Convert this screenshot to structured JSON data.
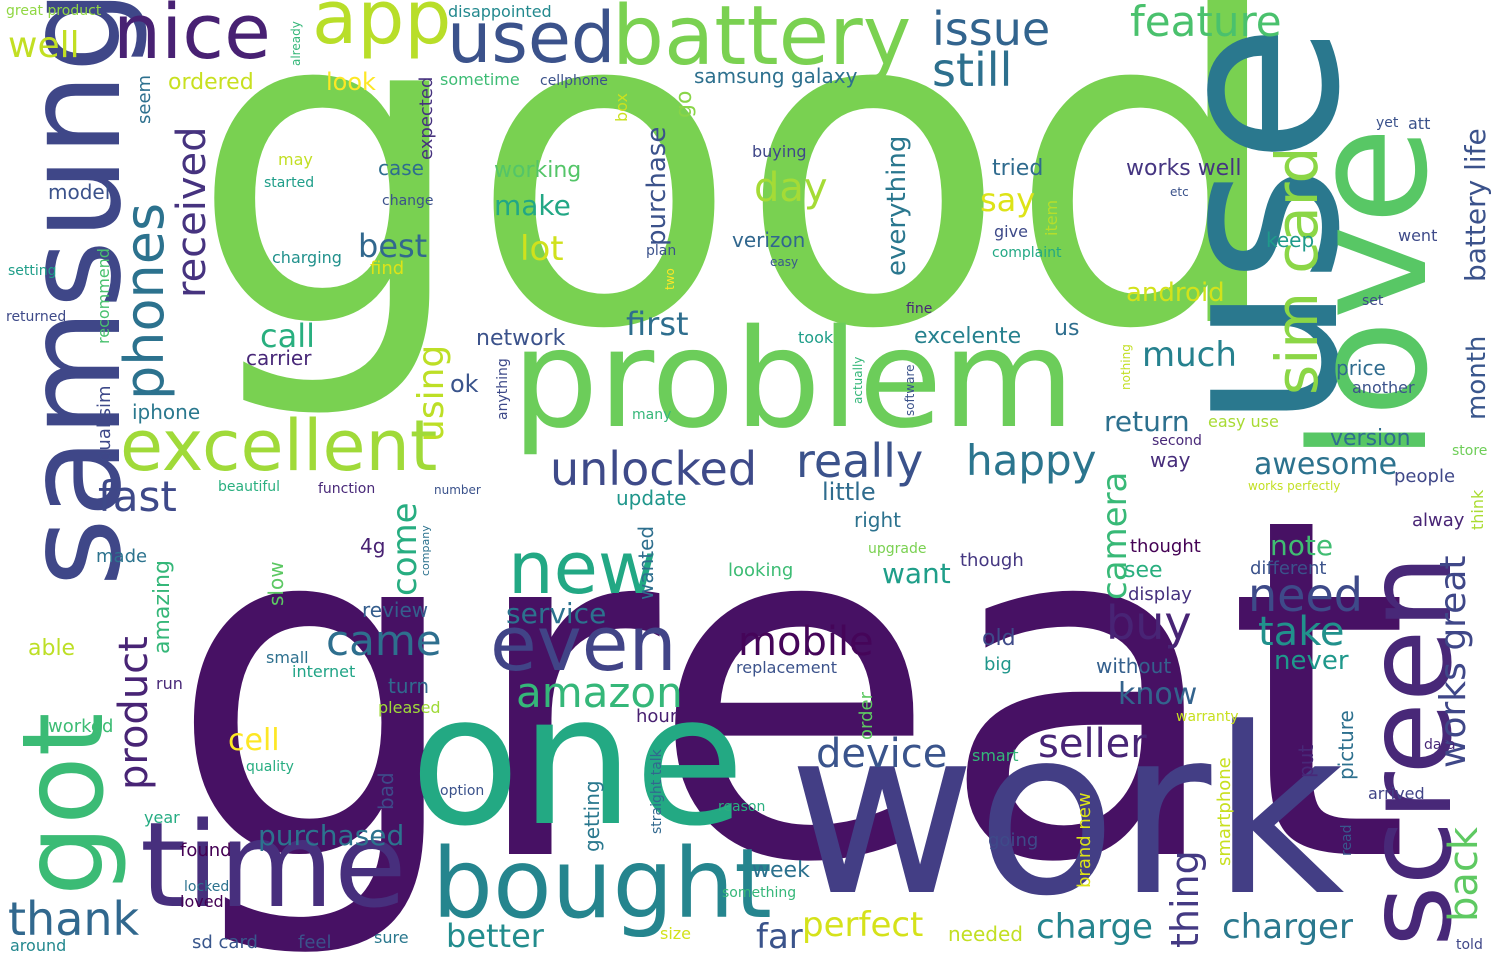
{
  "words": [
    {
      "text": "great",
      "color": "#471164"
    },
    {
      "text": "good",
      "color": "#79d151"
    },
    {
      "text": "work",
      "color": "#433e85"
    },
    {
      "text": "use",
      "color": "#2a788e"
    },
    {
      "text": "one",
      "color": "#23a983"
    },
    {
      "text": "samsung",
      "color": "#3f4788"
    },
    {
      "text": "love",
      "color": "#58c765"
    },
    {
      "text": "problem",
      "color": "#6ccd5a"
    },
    {
      "text": "screen",
      "color": "#482878"
    },
    {
      "text": "time",
      "color": "#472f7d"
    },
    {
      "text": "got",
      "color": "#3bbb75"
    },
    {
      "text": "bought",
      "color": "#25858e"
    },
    {
      "text": "battery",
      "color": "#7ad151"
    },
    {
      "text": "used",
      "color": "#3b528b"
    },
    {
      "text": "nice",
      "color": "#482173"
    },
    {
      "text": "app",
      "color": "#b8de29"
    },
    {
      "text": "excellent",
      "color": "#a0da39"
    },
    {
      "text": "even",
      "color": "#414487"
    },
    {
      "text": "new",
      "color": "#22a884"
    },
    {
      "text": "sim card",
      "color": "#8bd646"
    },
    {
      "text": "phones",
      "color": "#2c728e"
    },
    {
      "text": "issue",
      "color": "#32648e"
    },
    {
      "text": "still",
      "color": "#2d708e"
    },
    {
      "text": "feature",
      "color": "#4ac16d"
    },
    {
      "text": "well",
      "color": "#c2df23"
    },
    {
      "text": "unlocked",
      "color": "#3e4a89"
    },
    {
      "text": "really",
      "color": "#3b528b"
    },
    {
      "text": "happy",
      "color": "#2b758e"
    },
    {
      "text": "amazon",
      "color": "#35b779"
    },
    {
      "text": "thank",
      "color": "#31688e"
    },
    {
      "text": "received",
      "color": "#46337f"
    },
    {
      "text": "product",
      "color": "#482475"
    },
    {
      "text": "fast",
      "color": "#3e4989"
    },
    {
      "text": "came",
      "color": "#2e6f8e"
    },
    {
      "text": "mobile",
      "color": "#450559"
    },
    {
      "text": "seller",
      "color": "#482576"
    },
    {
      "text": "device",
      "color": "#3a548c"
    },
    {
      "text": "need",
      "color": "#3e4a89"
    },
    {
      "text": "buy",
      "color": "#482475"
    },
    {
      "text": "take",
      "color": "#21918c"
    },
    {
      "text": "day",
      "color": "#a5db36"
    },
    {
      "text": "say",
      "color": "#dde318"
    },
    {
      "text": "much",
      "color": "#26818e"
    },
    {
      "text": "camera",
      "color": "#38b977"
    },
    {
      "text": "using",
      "color": "#bddf26"
    },
    {
      "text": "call",
      "color": "#29af7f"
    },
    {
      "text": "come",
      "color": "#27ad81"
    },
    {
      "text": "purchased",
      "color": "#2c738e"
    },
    {
      "text": "perfect",
      "color": "#d5e21a"
    },
    {
      "text": "better",
      "color": "#228c8d"
    },
    {
      "text": "charge",
      "color": "#25848e"
    },
    {
      "text": "charger",
      "color": "#2a788e"
    },
    {
      "text": "thing",
      "color": "#443a83"
    },
    {
      "text": "back",
      "color": "#5ec962"
    },
    {
      "text": "works great",
      "color": "#3f4788"
    },
    {
      "text": "battery life",
      "color": "#3b528b"
    },
    {
      "text": "first",
      "color": "#2e6e8e"
    },
    {
      "text": "return",
      "color": "#2d708e"
    },
    {
      "text": "awesome",
      "color": "#2c728e"
    },
    {
      "text": "note",
      "color": "#40bd72"
    },
    {
      "text": "never",
      "color": "#1f988b"
    },
    {
      "text": "know",
      "color": "#33638d"
    },
    {
      "text": "lot",
      "color": "#d0e11c"
    },
    {
      "text": "make",
      "color": "#22a785"
    },
    {
      "text": "best",
      "color": "#31688e"
    },
    {
      "text": "service",
      "color": "#2c728e"
    },
    {
      "text": "far",
      "color": "#3a538b"
    },
    {
      "text": "week",
      "color": "#2c718e"
    },
    {
      "text": "want",
      "color": "#1f9e89"
    },
    {
      "text": "cell",
      "color": "#fde725"
    },
    {
      "text": "android",
      "color": "#d2e21b"
    },
    {
      "text": "month",
      "color": "#39568c"
    },
    {
      "text": "everything",
      "color": "#2a778e"
    },
    {
      "text": "purchase",
      "color": "#3b528b"
    },
    {
      "text": "working",
      "color": "#54c568"
    },
    {
      "text": "little",
      "color": "#2f6c8e"
    },
    {
      "text": "look",
      "color": "#fde725"
    },
    {
      "text": "ordered",
      "color": "#c8e020"
    },
    {
      "text": "samsung galaxy",
      "color": "#2d708e"
    },
    {
      "text": "verizon",
      "color": "#31678e"
    },
    {
      "text": "go",
      "color": "#89d548"
    },
    {
      "text": "case",
      "color": "#2e6e8e"
    },
    {
      "text": "model",
      "color": "#3b528b"
    },
    {
      "text": "tried",
      "color": "#2f6b8e"
    },
    {
      "text": "works well",
      "color": "#453581"
    },
    {
      "text": "version",
      "color": "#2e6e8e"
    },
    {
      "text": "keep",
      "color": "#1f9a8a"
    },
    {
      "text": "price",
      "color": "#2f6b8e"
    },
    {
      "text": "excelente",
      "color": "#26818e"
    },
    {
      "text": "network",
      "color": "#3b528b"
    },
    {
      "text": "carrier",
      "color": "#482878"
    },
    {
      "text": "iphone",
      "color": "#2a788e"
    },
    {
      "text": "ok",
      "color": "#3a548c"
    },
    {
      "text": "us",
      "color": "#2e6e8e"
    },
    {
      "text": "dual sim",
      "color": "#3e4989"
    },
    {
      "text": "amazing",
      "color": "#35b779"
    },
    {
      "text": "recommend",
      "color": "#48c16e"
    },
    {
      "text": "update",
      "color": "#1f968b"
    },
    {
      "text": "way",
      "color": "#472d7b"
    },
    {
      "text": "right",
      "color": "#2c728e"
    },
    {
      "text": "4g",
      "color": "#482173"
    },
    {
      "text": "wanted",
      "color": "#2e6f8e"
    },
    {
      "text": "slow",
      "color": "#5cc863"
    },
    {
      "text": "review",
      "color": "#355e8d"
    },
    {
      "text": "turn",
      "color": "#306a8e"
    },
    {
      "text": "old",
      "color": "#3e4a89"
    },
    {
      "text": "without",
      "color": "#35608d"
    },
    {
      "text": "thought",
      "color": "#440154"
    },
    {
      "text": "see",
      "color": "#29af7f"
    },
    {
      "text": "display",
      "color": "#46327e"
    },
    {
      "text": "different",
      "color": "#3b528b"
    },
    {
      "text": "people",
      "color": "#3f4788"
    },
    {
      "text": "alway",
      "color": "#482475"
    },
    {
      "text": "think",
      "color": "#aadc32"
    },
    {
      "text": "picture",
      "color": "#2d708e"
    },
    {
      "text": "put",
      "color": "#482878"
    },
    {
      "text": "smartphone",
      "color": "#c8e020"
    },
    {
      "text": "brand new",
      "color": "#dde318"
    },
    {
      "text": "order",
      "color": "#5ec962"
    },
    {
      "text": "getting",
      "color": "#2a788e"
    },
    {
      "text": "straight talk",
      "color": "#31688e"
    },
    {
      "text": "going",
      "color": "#3e4a89"
    },
    {
      "text": "smart",
      "color": "#35b779"
    },
    {
      "text": "big",
      "color": "#1f968b"
    },
    {
      "text": "hour",
      "color": "#482071"
    },
    {
      "text": "replacement",
      "color": "#3b528b"
    },
    {
      "text": "looking",
      "color": "#3dbc74"
    },
    {
      "text": "upgrade",
      "color": "#7ad151"
    },
    {
      "text": "though",
      "color": "#453781"
    },
    {
      "text": "able",
      "color": "#bddf26"
    },
    {
      "text": "made",
      "color": "#2c738e"
    },
    {
      "text": "small",
      "color": "#2d708e"
    },
    {
      "text": "internet",
      "color": "#20a486"
    },
    {
      "text": "run",
      "color": "#482878"
    },
    {
      "text": "pleased",
      "color": "#a0da39"
    },
    {
      "text": "worked",
      "color": "#3dbc74"
    },
    {
      "text": "quality",
      "color": "#27ad81"
    },
    {
      "text": "bad",
      "color": "#3e4a89"
    },
    {
      "text": "option",
      "color": "#3b528b"
    },
    {
      "text": "reason",
      "color": "#29af7f"
    },
    {
      "text": "something",
      "color": "#35b779"
    },
    {
      "text": "warranty",
      "color": "#c8e020"
    },
    {
      "text": "data",
      "color": "#482878"
    },
    {
      "text": "arrived",
      "color": "#414487"
    },
    {
      "text": "read",
      "color": "#39568c"
    },
    {
      "text": "year",
      "color": "#25ac82"
    },
    {
      "text": "found",
      "color": "#440154"
    },
    {
      "text": "locked",
      "color": "#2c728e"
    },
    {
      "text": "loved",
      "color": "#440154"
    },
    {
      "text": "around",
      "color": "#23888e"
    },
    {
      "text": "sd card",
      "color": "#39568c"
    },
    {
      "text": "feel",
      "color": "#3b528b"
    },
    {
      "text": "sure",
      "color": "#2a788e"
    },
    {
      "text": "size",
      "color": "#d2e21b"
    },
    {
      "text": "needed",
      "color": "#c2df23"
    },
    {
      "text": "told",
      "color": "#3f4788"
    },
    {
      "text": "great product",
      "color": "#90d743"
    },
    {
      "text": "already",
      "color": "#35b779"
    },
    {
      "text": "disappointed",
      "color": "#23898e"
    },
    {
      "text": "sometime",
      "color": "#3dbc74"
    },
    {
      "text": "cellphone",
      "color": "#3b528b"
    },
    {
      "text": "expected",
      "color": "#46327e"
    },
    {
      "text": "box",
      "color": "#cae11f"
    },
    {
      "text": "seem",
      "color": "#2d708e"
    },
    {
      "text": "may",
      "color": "#c2df23"
    },
    {
      "text": "started",
      "color": "#1f9e89"
    },
    {
      "text": "change",
      "color": "#3b528b"
    },
    {
      "text": "charging",
      "color": "#21918c"
    },
    {
      "text": "find",
      "color": "#dde318"
    },
    {
      "text": "setting",
      "color": "#1f9e89"
    },
    {
      "text": "returned",
      "color": "#3e4a89"
    },
    {
      "text": "buying",
      "color": "#3f4788"
    },
    {
      "text": "easy",
      "color": "#38588c"
    },
    {
      "text": "plan",
      "color": "#3b528b"
    },
    {
      "text": "two",
      "color": "#fde725"
    },
    {
      "text": "took",
      "color": "#1f9e89"
    },
    {
      "text": "fine",
      "color": "#482878"
    },
    {
      "text": "actually",
      "color": "#35b779"
    },
    {
      "text": "software",
      "color": "#3b528b"
    },
    {
      "text": "anything",
      "color": "#3e4a89"
    },
    {
      "text": "nothing",
      "color": "#c2df23"
    },
    {
      "text": "many",
      "color": "#35b779"
    },
    {
      "text": "item",
      "color": "#b5de2b"
    },
    {
      "text": "give",
      "color": "#3e4a89"
    },
    {
      "text": "complaint",
      "color": "#22a884"
    },
    {
      "text": "etc",
      "color": "#3b528b"
    },
    {
      "text": "yet",
      "color": "#3b528b"
    },
    {
      "text": "att",
      "color": "#3b528b"
    },
    {
      "text": "went",
      "color": "#3e4a89"
    },
    {
      "text": "set",
      "color": "#3e4a89"
    },
    {
      "text": "another",
      "color": "#3b528b"
    },
    {
      "text": "second",
      "color": "#482878"
    },
    {
      "text": "easy use",
      "color": "#a8db34"
    },
    {
      "text": "store",
      "color": "#6ece58"
    },
    {
      "text": "works perfectly",
      "color": "#c2df23"
    },
    {
      "text": "beautiful",
      "color": "#29af7f"
    },
    {
      "text": "function",
      "color": "#482878"
    },
    {
      "text": "number",
      "color": "#3b528b"
    },
    {
      "text": "company",
      "color": "#2c728e"
    }
  ]
}
